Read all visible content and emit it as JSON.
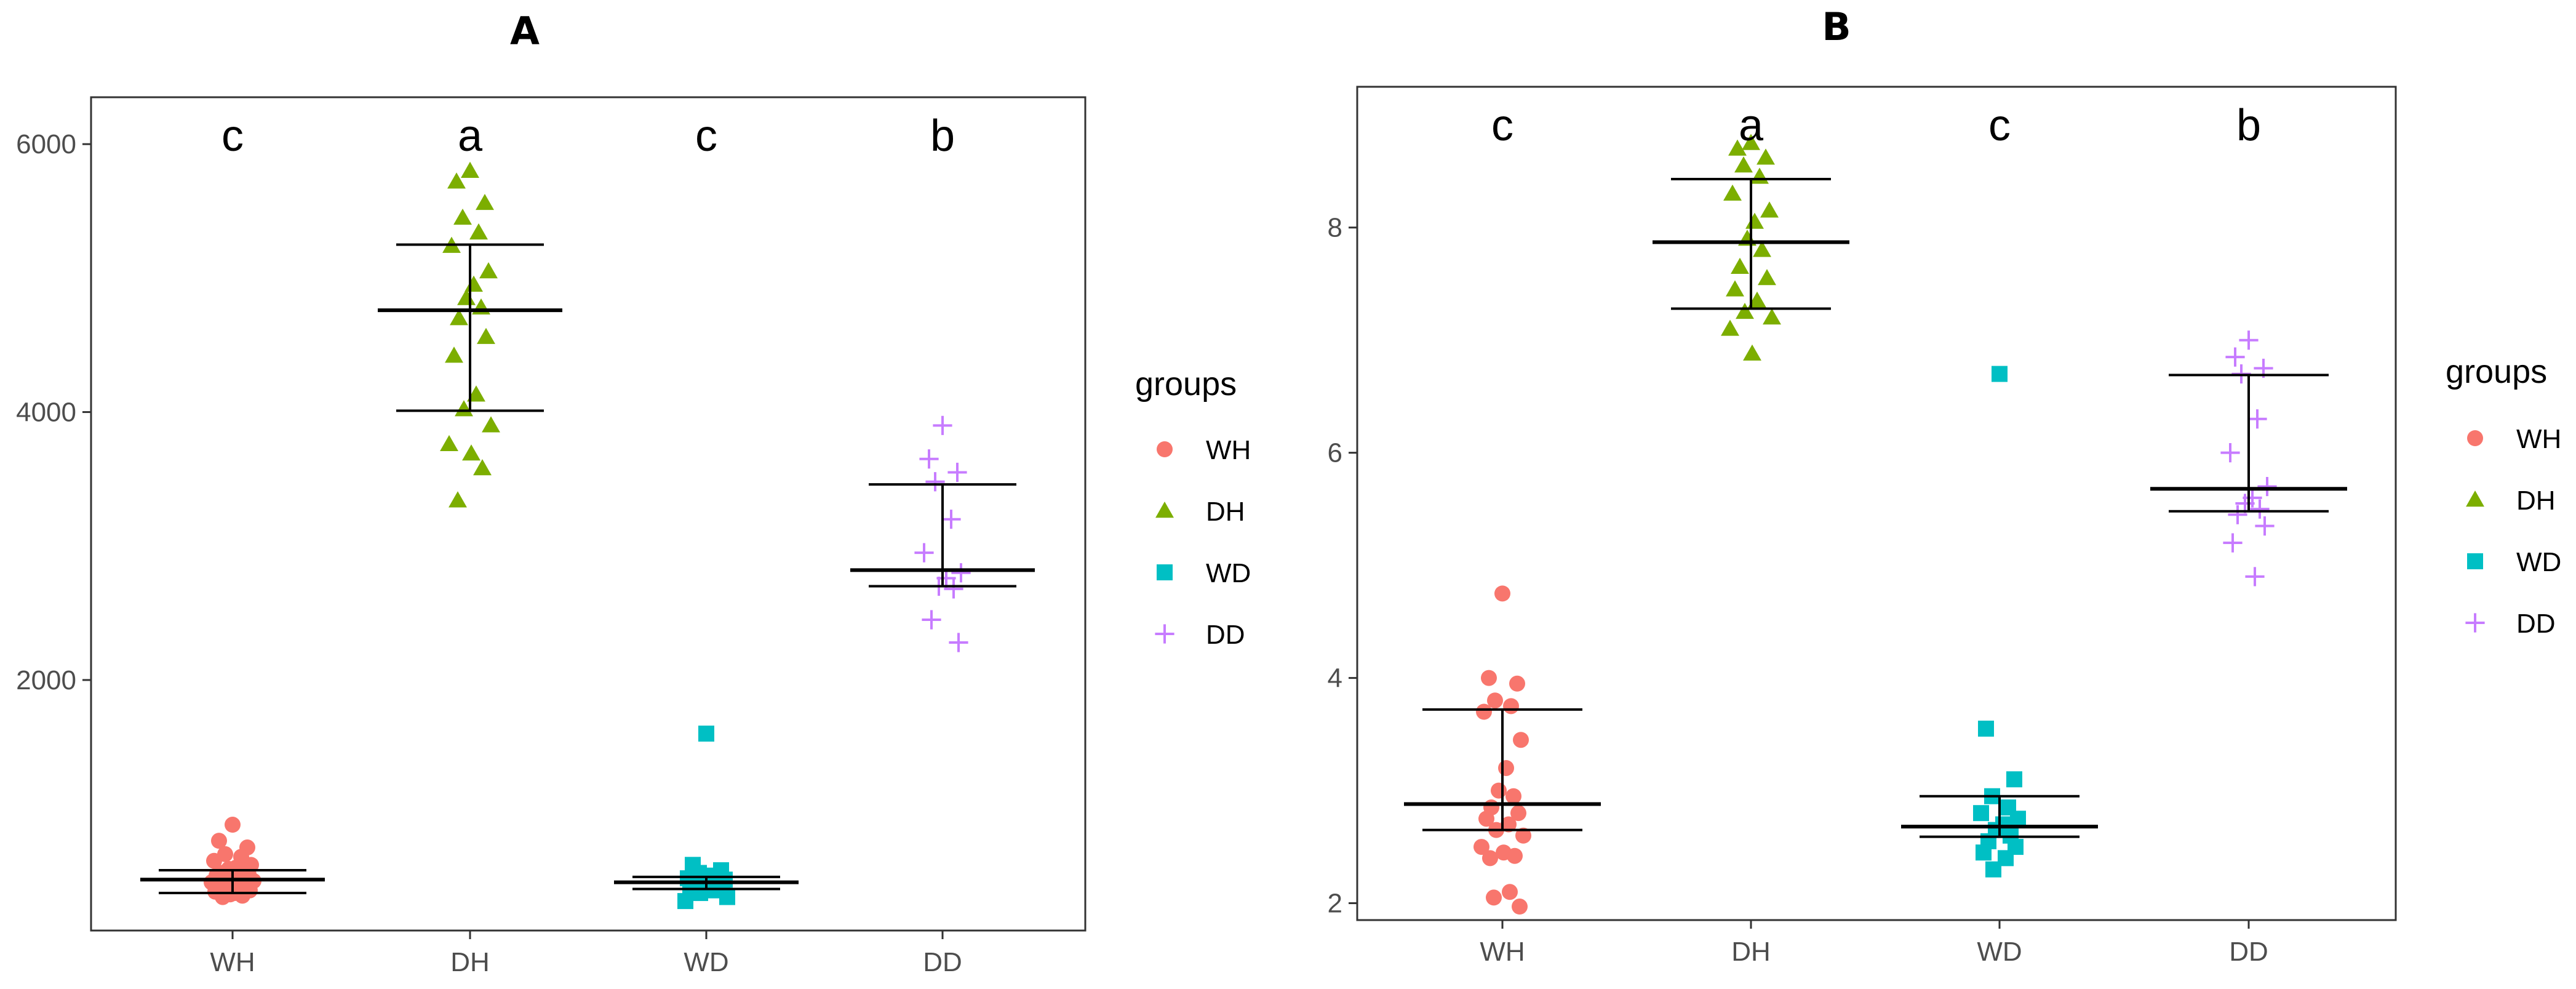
{
  "chart_data": [
    {
      "panel": "A",
      "type": "scatter",
      "title": "A",
      "categories": [
        "WH",
        "DH",
        "WD",
        "DD"
      ],
      "ylim": [
        130,
        6350
      ],
      "yticks": [
        2000,
        4000,
        6000
      ],
      "ytick_labels": [
        "2000",
        "4000",
        "6000"
      ],
      "grid": false,
      "significance": [
        "c",
        "a",
        "c",
        "b"
      ],
      "summary": [
        {
          "group": "WH",
          "mean": 510,
          "lower": 410,
          "upper": 580
        },
        {
          "group": "DH",
          "mean": 4760,
          "lower": 4010,
          "upper": 5250
        },
        {
          "group": "WD",
          "mean": 490,
          "lower": 440,
          "upper": 530
        },
        {
          "group": "DD",
          "mean": 2820,
          "lower": 2700,
          "upper": 3460
        }
      ],
      "series": [
        {
          "name": "WH",
          "shape": "circle",
          "color": "#F8766D",
          "values": [
            920,
            800,
            750,
            700,
            680,
            650,
            620,
            600,
            590,
            580,
            560,
            550,
            540,
            530,
            520,
            500,
            490,
            480,
            470,
            460,
            450,
            440,
            430,
            420,
            410,
            400,
            390,
            380
          ]
        },
        {
          "name": "DH",
          "shape": "triangle",
          "color": "#7CAE00",
          "values": [
            5800,
            5720,
            5560,
            5450,
            5340,
            5240,
            5050,
            4950,
            4850,
            4780,
            4700,
            4560,
            4420,
            4130,
            4020,
            3900,
            3760,
            3690,
            3580,
            3340
          ]
        },
        {
          "name": "WD",
          "shape": "square",
          "color": "#00BFC4",
          "values": [
            1600,
            620,
            580,
            560,
            540,
            520,
            510,
            500,
            490,
            480,
            470,
            460,
            450,
            430,
            410,
            380,
            350
          ]
        },
        {
          "name": "DD",
          "shape": "plus",
          "color": "#C77CFF",
          "values": [
            3900,
            3650,
            3550,
            3480,
            3200,
            2950,
            2800,
            2760,
            2700,
            2680,
            2450,
            2280
          ]
        }
      ]
    },
    {
      "panel": "B",
      "type": "scatter",
      "title": "B",
      "categories": [
        "WH",
        "DH",
        "WD",
        "DD"
      ],
      "ylim": [
        1.85,
        9.25
      ],
      "yticks": [
        2,
        4,
        6,
        8
      ],
      "ytick_labels": [
        "2",
        "4",
        "6",
        "8"
      ],
      "grid": false,
      "significance": [
        "c",
        "a",
        "c",
        "b"
      ],
      "summary": [
        {
          "group": "WH",
          "mean": 2.88,
          "lower": 2.65,
          "upper": 3.72
        },
        {
          "group": "DH",
          "mean": 7.87,
          "lower": 7.28,
          "upper": 8.43
        },
        {
          "group": "WD",
          "mean": 2.68,
          "lower": 2.59,
          "upper": 2.95
        },
        {
          "group": "DD",
          "mean": 5.68,
          "lower": 5.48,
          "upper": 6.69
        }
      ],
      "series": [
        {
          "name": "WH",
          "shape": "circle",
          "color": "#F8766D",
          "values": [
            4.75,
            4.0,
            3.95,
            3.8,
            3.75,
            3.7,
            3.45,
            3.2,
            3.0,
            2.95,
            2.85,
            2.8,
            2.75,
            2.7,
            2.65,
            2.6,
            2.5,
            2.45,
            2.42,
            2.4,
            2.1,
            2.05,
            1.97
          ]
        },
        {
          "name": "DH",
          "shape": "triangle",
          "color": "#7CAE00",
          "values": [
            8.75,
            8.7,
            8.62,
            8.55,
            8.45,
            8.3,
            8.15,
            8.05,
            7.9,
            7.8,
            7.65,
            7.55,
            7.45,
            7.35,
            7.25,
            7.2,
            7.1,
            6.88
          ]
        },
        {
          "name": "WD",
          "shape": "square",
          "color": "#00BFC4",
          "values": [
            6.7,
            3.55,
            3.1,
            2.95,
            2.85,
            2.8,
            2.75,
            2.7,
            2.65,
            2.6,
            2.55,
            2.5,
            2.45,
            2.4,
            2.3
          ]
        },
        {
          "name": "DD",
          "shape": "plus",
          "color": "#C77CFF",
          "values": [
            7.0,
            6.85,
            6.75,
            6.7,
            6.3,
            6.0,
            5.7,
            5.6,
            5.55,
            5.5,
            5.45,
            5.35,
            5.2,
            4.9
          ]
        }
      ]
    }
  ],
  "legend": {
    "title": "groups",
    "placement": "right",
    "items": [
      {
        "label": "WH",
        "shape": "circle",
        "color": "#F8766D"
      },
      {
        "label": "DH",
        "shape": "triangle",
        "color": "#7CAE00"
      },
      {
        "label": "WD",
        "shape": "square",
        "color": "#00BFC4"
      },
      {
        "label": "DD",
        "shape": "plus",
        "color": "#C77CFF"
      }
    ]
  }
}
